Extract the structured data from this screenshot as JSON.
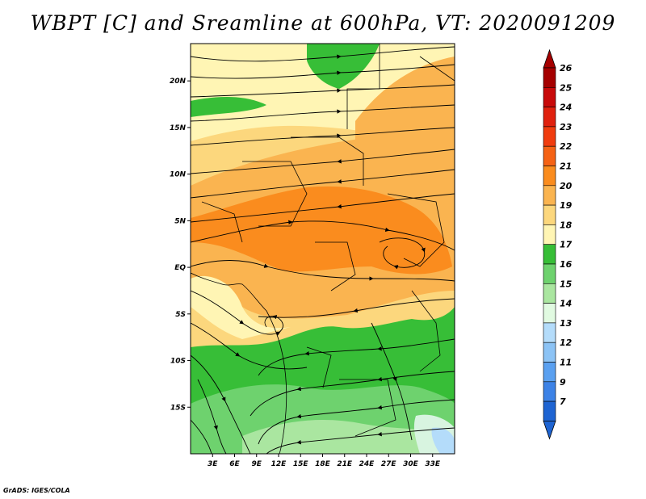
{
  "title": "WBPT [C] and Sreamline at 600hPa, VT: 2020091209",
  "credit": "GrADS: IGES/COLA",
  "map": {
    "lon_range": [
      0,
      36
    ],
    "lat_range": [
      -20,
      24
    ],
    "lat_ticks": [
      {
        "value": 20,
        "label": "20N"
      },
      {
        "value": 15,
        "label": "15N"
      },
      {
        "value": 10,
        "label": "10N"
      },
      {
        "value": 5,
        "label": "5N"
      },
      {
        "value": 0,
        "label": "EQ"
      },
      {
        "value": -5,
        "label": "5S"
      },
      {
        "value": -10,
        "label": "10S"
      },
      {
        "value": -15,
        "label": "15S"
      }
    ],
    "lon_ticks": [
      {
        "value": 3,
        "label": "3E"
      },
      {
        "value": 6,
        "label": "6E"
      },
      {
        "value": 9,
        "label": "9E"
      },
      {
        "value": 12,
        "label": "12E"
      },
      {
        "value": 15,
        "label": "15E"
      },
      {
        "value": 18,
        "label": "18E"
      },
      {
        "value": 21,
        "label": "21E"
      },
      {
        "value": 24,
        "label": "24E"
      },
      {
        "value": 27,
        "label": "27E"
      },
      {
        "value": 30,
        "label": "30E"
      },
      {
        "value": 33,
        "label": "33E"
      }
    ]
  },
  "colorbar": {
    "levels": [
      {
        "label": "26",
        "color": "#a50000"
      },
      {
        "label": "25",
        "color": "#c80a0a"
      },
      {
        "label": "24",
        "color": "#e0210e"
      },
      {
        "label": "23",
        "color": "#f03c0e"
      },
      {
        "label": "22",
        "color": "#f56214"
      },
      {
        "label": "21",
        "color": "#fa8c1e"
      },
      {
        "label": "20",
        "color": "#fab450"
      },
      {
        "label": "19",
        "color": "#fcd77d"
      },
      {
        "label": "18",
        "color": "#fff5b4"
      },
      {
        "label": "17",
        "color": "#37be37"
      },
      {
        "label": "16",
        "color": "#6ed26e"
      },
      {
        "label": "15",
        "color": "#aae6a0"
      },
      {
        "label": "14",
        "color": "#e1fae1"
      },
      {
        "label": "13",
        "color": "#b4dcfa"
      },
      {
        "label": "12",
        "color": "#8cc3f5"
      },
      {
        "label": "11",
        "color": "#5aa0f0"
      },
      {
        "label": "9",
        "color": "#3c82e6"
      },
      {
        "label": "7",
        "color": "#1e64d2"
      }
    ],
    "low_color": "#1e64d2",
    "high_color": "#a50000"
  },
  "field_colors": {
    "c17": "#37be37",
    "c16": "#6ed26e",
    "c15": "#aae6a0",
    "c14": "#d8f4e0",
    "c13": "#b4dcfa",
    "c18": "#fff5b4",
    "c19": "#fcd77d",
    "c20": "#fab450",
    "c21": "#fa8c1e"
  }
}
